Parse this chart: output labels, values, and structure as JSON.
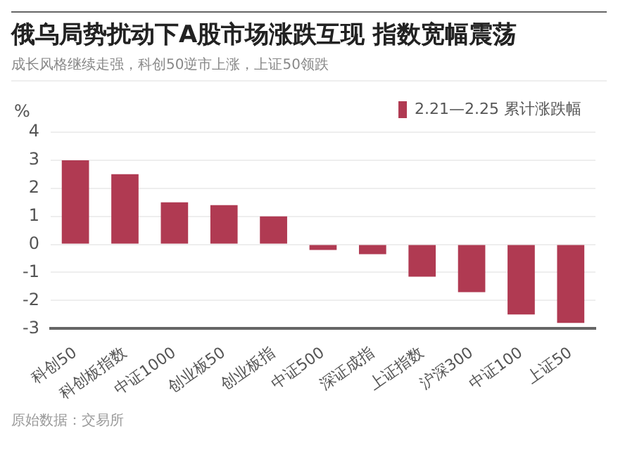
{
  "chart_data": {
    "type": "bar",
    "title": "俄乌局势扰动下A股市场涨跌互现 指数宽幅震荡",
    "subtitle": "成长风格继续走强，科创50逆市上涨，上证50领跌",
    "ylabel": "%",
    "categories": [
      "科创50",
      "科创板指数",
      "中证1000",
      "创业板50",
      "创业板指",
      "中证500",
      "深证成指",
      "上证指数",
      "沪深300",
      "中证100",
      "上证50"
    ],
    "series": [
      {
        "name": "2.21—2.25 累计涨跌幅",
        "color": "#b03a52",
        "values": [
          3.0,
          2.5,
          1.5,
          1.4,
          1.0,
          -0.2,
          -0.35,
          -1.15,
          -1.7,
          -2.5,
          -2.8
        ]
      }
    ],
    "ylim": [
      -3,
      4
    ],
    "yticks": [
      -3,
      -2,
      -1,
      0,
      1,
      2,
      3,
      4
    ],
    "grid": "y",
    "legend": "top right",
    "annotations": [
      "原始数据：交易所"
    ]
  }
}
